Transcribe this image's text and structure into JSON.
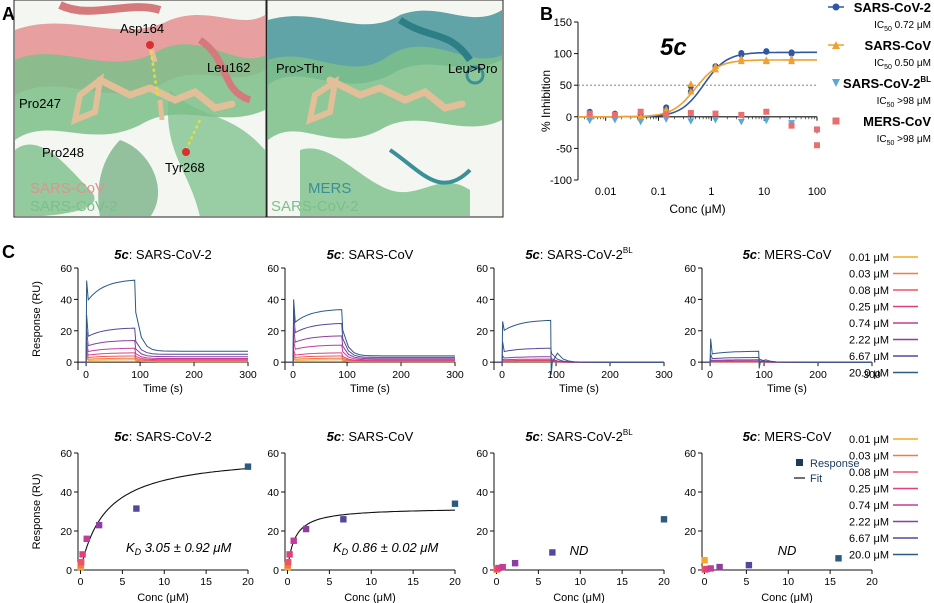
{
  "panel_labels": {
    "a": "A",
    "b": "B",
    "c": "C"
  },
  "panel_a": {
    "left": {
      "labels": [
        "Asp164",
        "Leu162",
        "Pro247",
        "Pro248",
        "Tyr268"
      ],
      "legend": [
        "SARS-CoV",
        "SARS-CoV-2"
      ]
    },
    "right": {
      "labels": [
        "Pro>Thr",
        "Leu>Pro"
      ],
      "legend": [
        "MERS",
        "SARS-CoV-2"
      ]
    }
  },
  "colors": {
    "sars2": "#2f57a3",
    "sars": "#f0a030",
    "sars2bl": "#5aa7dc",
    "mers": "#e86f6f",
    "coral": "#e58f91",
    "green": "#7bbf8a",
    "teal": "#3b8f96",
    "ligand": "#e2bf98",
    "navy": "#1b3a5e"
  },
  "chart_data": [
    {
      "id": "b",
      "type": "scatter",
      "title": "5c",
      "xlabel": "Conc (μM)",
      "ylabel": "% Inhibition",
      "xscale": "log",
      "xlim": [
        0.003,
        100
      ],
      "ylim": [
        -100,
        150
      ],
      "xticks": [
        "0.01",
        "0.1",
        "1",
        "10",
        "100"
      ],
      "yticks": [
        "-100",
        "-50",
        "0",
        "50",
        "100",
        "150"
      ],
      "reference_line": 50,
      "series": [
        {
          "name": "SARS-CoV-2",
          "ic50": "0.72 μM",
          "x": [
            0.005,
            0.005,
            0.015,
            0.015,
            0.046,
            0.046,
            0.14,
            0.14,
            0.41,
            0.41,
            1.2,
            1.2,
            3.7,
            3.7,
            11,
            11,
            33,
            33
          ],
          "y": [
            8,
            3,
            5,
            2,
            5,
            4,
            15,
            10,
            40,
            48,
            80,
            80,
            98,
            101,
            103,
            104,
            100,
            102
          ],
          "fit": {
            "ic50": 0.72,
            "top": 102
          }
        },
        {
          "name": "SARS-CoV",
          "ic50": "0.50 μM",
          "x": [
            0.005,
            0.005,
            0.015,
            0.015,
            0.046,
            0.046,
            0.14,
            0.14,
            0.41,
            0.41,
            1.2,
            1.2,
            3.7,
            3.7,
            11,
            11,
            33,
            33
          ],
          "y": [
            5,
            0,
            2,
            3,
            -1,
            0,
            8,
            12,
            40,
            52,
            75,
            80,
            88,
            92,
            88,
            90,
            92,
            88
          ],
          "fit": {
            "ic50": 0.5,
            "top": 90
          }
        },
        {
          "name": "SARS-CoV-2BL",
          "ic50": ">98 μM",
          "x": [
            0.005,
            0.015,
            0.046,
            0.14,
            0.41,
            1.2,
            3.7,
            11,
            33,
            100
          ],
          "y": [
            -6,
            -5,
            -8,
            -4,
            -7,
            -5,
            -8,
            -6,
            -10,
            -22
          ],
          "fit": null
        },
        {
          "name": "MERS-CoV",
          "ic50": ">98 μM",
          "x": [
            0.005,
            0.015,
            0.046,
            0.14,
            0.41,
            1.2,
            3.7,
            11,
            33,
            100,
            100
          ],
          "y": [
            5,
            3,
            8,
            4,
            6,
            5,
            3,
            8,
            -14,
            -20,
            -45
          ],
          "fit": null
        }
      ],
      "legend": [
        {
          "title": "SARS-CoV-2",
          "ic50_label": "IC",
          "ic50_sub": "50",
          "ic50_value": " 0.72 μM"
        },
        {
          "title": "SARS-CoV",
          "ic50_label": "IC",
          "ic50_sub": "50",
          "ic50_value": " 0.50 μM"
        },
        {
          "title": "SARS-CoV-2",
          "title_sup": "BL",
          "ic50_label": "IC",
          "ic50_sub": "50",
          "ic50_value": " >98 μM"
        },
        {
          "title": "MERS-CoV",
          "ic50_label": "IC",
          "ic50_sub": "50",
          "ic50_value": " >98 μM"
        }
      ]
    }
  ],
  "panel_c": {
    "concentrations": [
      "0.01 μM",
      "0.03 μM",
      "0.08 μM",
      "0.25 μM",
      "0.74 μM",
      "2.22 μM",
      "6.67 μM",
      "20.0 μM"
    ],
    "conc_colors": [
      "#f6a821",
      "#f27c3d",
      "#ef5466",
      "#e2407c",
      "#c33c9a",
      "#8c3f9e",
      "#58469b",
      "#2c5a83"
    ],
    "sensorgram": {
      "xlabel": "Time (s)",
      "ylabel": "Response (RU)",
      "xlim": [
        -15,
        300
      ],
      "ylim": [
        -5,
        60
      ],
      "xticks": [
        "0",
        "100",
        "200",
        "300"
      ],
      "yticks": [
        "0",
        "20",
        "40",
        "60"
      ],
      "panels": [
        {
          "prefix": "5c",
          "suffix": ": SARS-CoV-2",
          "sup": "",
          "spike": [
            3,
            4,
            6,
            9,
            13,
            20,
            30,
            52
          ],
          "plateau": [
            1.5,
            2.5,
            4,
            6,
            9,
            14,
            22,
            53
          ],
          "tail": [
            0.3,
            0.6,
            1,
            1.6,
            2.3,
            3.5,
            5,
            7
          ],
          "dip": 0
        },
        {
          "prefix": "5c",
          "suffix": ": SARS-CoV",
          "sup": "",
          "spike": [
            2,
            3,
            5,
            8,
            14,
            22,
            32,
            40
          ],
          "plateau": [
            1.5,
            2.5,
            4,
            6,
            11,
            17,
            25,
            34
          ],
          "tail": [
            0.2,
            0.4,
            0.7,
            1,
            1.5,
            2.2,
            3,
            4
          ],
          "dip": 0
        },
        {
          "prefix": "5c",
          "suffix": ": SARS-CoV-2",
          "sup": "BL",
          "spike": [
            0.3,
            0.5,
            0.8,
            1,
            2,
            4,
            13,
            26
          ],
          "plateau": [
            0.3,
            0.5,
            0.8,
            1.2,
            2,
            3.5,
            9,
            27
          ],
          "tail": [
            0,
            0,
            0,
            0,
            0,
            0,
            0,
            0
          ],
          "dip": -8
        },
        {
          "prefix": "5c",
          "suffix": ": MERS-CoV",
          "sup": "",
          "spike": [
            0.1,
            0.2,
            0.3,
            0.5,
            0.8,
            1.5,
            5,
            15
          ],
          "plateau": [
            0.1,
            0.2,
            0.3,
            0.5,
            0.8,
            1.5,
            3,
            7
          ],
          "tail": [
            0,
            0,
            0,
            0,
            0,
            0,
            0,
            0
          ],
          "dip": -4
        }
      ]
    },
    "affinity": {
      "xlabel": "Conc (μM)",
      "ylabel": "Response (RU)",
      "xlim": [
        -0.3,
        20
      ],
      "ylim": [
        0,
        60
      ],
      "xticks": [
        "0",
        "5",
        "10",
        "15",
        "20"
      ],
      "yticks": [
        "0",
        "20",
        "40",
        "60"
      ],
      "legend": {
        "response": "Response",
        "fit": "Fit"
      },
      "panels": [
        {
          "prefix": "5c",
          "suffix": ": SARS-CoV-2",
          "sup": "",
          "x": [
            0.01,
            0.03,
            0.08,
            0.25,
            0.74,
            2.22,
            6.67,
            20
          ],
          "y": [
            1.5,
            2.5,
            4,
            8,
            16,
            23,
            31.5,
            53
          ],
          "fit": {
            "rmax": 60,
            "kd": 3.05
          },
          "annotation_k": "K",
          "annotation_sub": "D",
          "annotation_rest": " 3.05 ± 0.92 μM"
        },
        {
          "prefix": "5c",
          "suffix": ": SARS-CoV",
          "sup": "",
          "x": [
            0.01,
            0.03,
            0.08,
            0.25,
            0.74,
            2.22,
            6.67,
            20
          ],
          "y": [
            1.5,
            2.5,
            4,
            8,
            15,
            21,
            26,
            34
          ],
          "fit": {
            "rmax": 32,
            "kd": 0.86
          },
          "annotation_k": "K",
          "annotation_sub": "D",
          "annotation_rest": " 0.86 ± 0.02 μM"
        },
        {
          "prefix": "5c",
          "suffix": ": SARS-CoV-2",
          "sup": "BL",
          "x": [
            0.01,
            0.03,
            0.08,
            0.25,
            0.74,
            2.22,
            6.67,
            20
          ],
          "y": [
            0.2,
            0.4,
            0.6,
            1,
            1.5,
            3.5,
            9,
            26
          ],
          "fit": null,
          "annotation_nd": "ND"
        },
        {
          "prefix": "5c",
          "suffix": ": MERS-CoV",
          "sup": "",
          "x": [
            0.01,
            0.03,
            0.08,
            0.25,
            0.74,
            1.8,
            5.3,
            16
          ],
          "y": [
            5,
            0.3,
            0.3,
            0.5,
            0.8,
            1.5,
            2.5,
            6
          ],
          "fit": null,
          "annotation_nd": "ND"
        }
      ]
    }
  }
}
